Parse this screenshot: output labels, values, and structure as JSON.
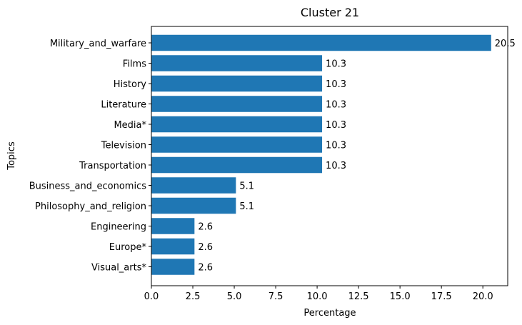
{
  "chart_data": {
    "type": "bar",
    "orientation": "horizontal",
    "title": "Cluster 21",
    "xlabel": "Percentage",
    "ylabel": "Topics",
    "categories": [
      "Military_and_warfare",
      "Films",
      "History",
      "Literature",
      "Media*",
      "Television",
      "Transportation",
      "Business_and_economics",
      "Philosophy_and_religion",
      "Engineering",
      "Europe*",
      "Visual_arts*"
    ],
    "values": [
      20.5,
      10.3,
      10.3,
      10.3,
      10.3,
      10.3,
      10.3,
      5.1,
      5.1,
      2.6,
      2.6,
      2.6
    ],
    "value_labels": [
      "20.5",
      "10.3",
      "10.3",
      "10.3",
      "10.3",
      "10.3",
      "10.3",
      "5.1",
      "5.1",
      "2.6",
      "2.6",
      "2.6"
    ],
    "xlim": [
      0,
      21.5
    ],
    "xticks": [
      0,
      2.5,
      5,
      7.5,
      10,
      12.5,
      15,
      17.5,
      20
    ],
    "xtick_labels": [
      "0.0",
      "2.5",
      "5.0",
      "7.5",
      "10.0",
      "12.5",
      "15.0",
      "17.5",
      "20.0"
    ],
    "grid": false,
    "legend": "none",
    "bar_color": "#1f77b4"
  }
}
